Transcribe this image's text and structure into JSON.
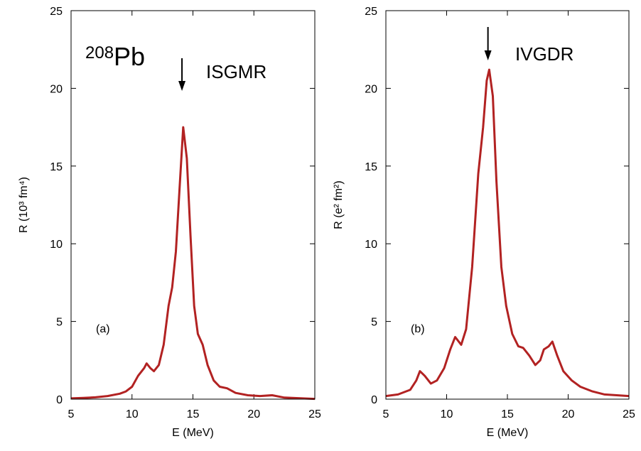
{
  "chart_data": [
    {
      "type": "line",
      "panel_label": "(a)",
      "nucleus": {
        "mass": "208",
        "symbol": "Pb"
      },
      "resonance": "ISGMR",
      "arrow_x": 14.1,
      "x_label": "E (MeV)",
      "y_label": "R (10³ fm⁴)",
      "xlim": [
        5,
        25
      ],
      "ylim": [
        0,
        25
      ],
      "xticks": [
        5,
        10,
        15,
        20,
        25
      ],
      "yticks": [
        0,
        5,
        10,
        15,
        20,
        25
      ],
      "x": [
        5,
        6,
        7,
        8,
        9,
        9.5,
        10,
        10.5,
        11,
        11.2,
        11.5,
        11.8,
        12.2,
        12.6,
        13,
        13.3,
        13.6,
        13.9,
        14.2,
        14.5,
        14.8,
        15.1,
        15.4,
        15.8,
        16.2,
        16.7,
        17.2,
        17.8,
        18.5,
        19.5,
        20.5,
        21.5,
        22.5,
        24,
        25
      ],
      "series": [
        {
          "color": "#b22222",
          "values": [
            0.05,
            0.08,
            0.12,
            0.2,
            0.35,
            0.5,
            0.8,
            1.5,
            2.0,
            2.3,
            2.0,
            1.8,
            2.2,
            3.5,
            6.0,
            7.2,
            9.5,
            13.5,
            17.5,
            15.5,
            10.5,
            6.0,
            4.2,
            3.5,
            2.2,
            1.2,
            0.8,
            0.7,
            0.4,
            0.25,
            0.2,
            0.25,
            0.1,
            0.05,
            0.02
          ]
        }
      ]
    },
    {
      "type": "line",
      "panel_label": "(b)",
      "resonance": "IVGDR",
      "arrow_x": 13.4,
      "x_label": "E (MeV)",
      "y_label": "R (e² fm²)",
      "xlim": [
        5,
        25
      ],
      "ylim": [
        0,
        25
      ],
      "xticks": [
        5,
        10,
        15,
        20,
        25
      ],
      "yticks": [
        0,
        5,
        10,
        15,
        20,
        25
      ],
      "x": [
        5,
        6,
        7,
        7.5,
        7.8,
        8.2,
        8.7,
        9.2,
        9.8,
        10.3,
        10.7,
        11.2,
        11.6,
        12.1,
        12.6,
        13.0,
        13.3,
        13.5,
        13.8,
        14.1,
        14.5,
        14.9,
        15.4,
        15.9,
        16.3,
        16.8,
        17.3,
        17.7,
        18.0,
        18.4,
        18.7,
        19.1,
        19.6,
        20.3,
        21,
        22,
        23,
        24,
        25
      ],
      "series": [
        {
          "color": "#b22222",
          "values": [
            0.2,
            0.3,
            0.6,
            1.2,
            1.8,
            1.5,
            1.0,
            1.2,
            2.0,
            3.2,
            4.0,
            3.5,
            4.5,
            8.5,
            14.5,
            17.5,
            20.5,
            21.2,
            19.5,
            14.0,
            8.5,
            6.0,
            4.2,
            3.4,
            3.3,
            2.8,
            2.2,
            2.5,
            3.2,
            3.4,
            3.7,
            2.8,
            1.8,
            1.2,
            0.8,
            0.5,
            0.3,
            0.25,
            0.2
          ]
        }
      ]
    }
  ]
}
